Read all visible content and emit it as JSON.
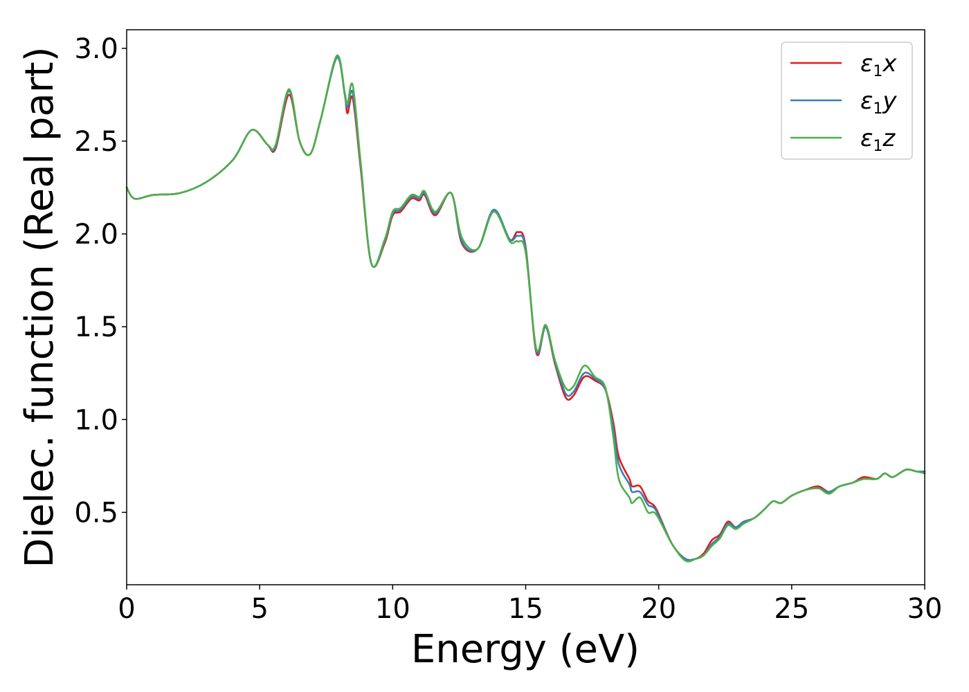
{
  "chart_data": {
    "type": "line",
    "xlabel": "Energy (eV)",
    "ylabel": "Dielec. function (Real part)",
    "xlim": [
      0,
      30
    ],
    "ylim": [
      0.11,
      3.1
    ],
    "xticks": [
      "0",
      "5",
      "10",
      "15",
      "20",
      "25",
      "30"
    ],
    "yticks": [
      "0.5",
      "1.0",
      "1.5",
      "2.0",
      "2.5",
      "3.0"
    ],
    "grid": false,
    "legend_position": "top-right",
    "series": [
      {
        "name": "ε1x",
        "legend_main": "ε",
        "legend_sub": "1",
        "legend_tail": "x",
        "color": "#e41a1c",
        "points": [
          [
            0,
            2.25
          ],
          [
            0.3,
            2.19
          ],
          [
            1,
            2.21
          ],
          [
            2,
            2.22
          ],
          [
            3,
            2.28
          ],
          [
            4,
            2.4
          ],
          [
            4.7,
            2.56
          ],
          [
            5.3,
            2.48
          ],
          [
            5.6,
            2.46
          ],
          [
            6.1,
            2.75
          ],
          [
            6.5,
            2.5
          ],
          [
            6.9,
            2.43
          ],
          [
            7.3,
            2.62
          ],
          [
            7.9,
            2.95
          ],
          [
            8.2,
            2.75
          ],
          [
            8.3,
            2.65
          ],
          [
            8.5,
            2.73
          ],
          [
            8.8,
            2.35
          ],
          [
            9.2,
            1.84
          ],
          [
            9.7,
            1.95
          ],
          [
            10.0,
            2.1
          ],
          [
            10.3,
            2.12
          ],
          [
            10.7,
            2.19
          ],
          [
            11.0,
            2.18
          ],
          [
            11.2,
            2.21
          ],
          [
            11.6,
            2.1
          ],
          [
            12.2,
            2.22
          ],
          [
            12.6,
            1.95
          ],
          [
            13.2,
            1.92
          ],
          [
            13.8,
            2.13
          ],
          [
            14.4,
            1.97
          ],
          [
            14.7,
            2.01
          ],
          [
            15.0,
            1.93
          ],
          [
            15.4,
            1.36
          ],
          [
            15.75,
            1.5
          ],
          [
            16.1,
            1.3
          ],
          [
            16.5,
            1.12
          ],
          [
            16.8,
            1.13
          ],
          [
            17.2,
            1.23
          ],
          [
            17.6,
            1.21
          ],
          [
            18.0,
            1.16
          ],
          [
            18.3,
            0.98
          ],
          [
            18.5,
            0.8
          ],
          [
            18.9,
            0.68
          ],
          [
            19.0,
            0.64
          ],
          [
            19.3,
            0.64
          ],
          [
            19.6,
            0.56
          ],
          [
            19.9,
            0.52
          ],
          [
            20.5,
            0.33
          ],
          [
            21.0,
            0.25
          ],
          [
            21.4,
            0.25
          ],
          [
            21.7,
            0.28
          ],
          [
            22.0,
            0.35
          ],
          [
            22.3,
            0.38
          ],
          [
            22.6,
            0.45
          ],
          [
            22.9,
            0.42
          ],
          [
            23.2,
            0.45
          ],
          [
            23.6,
            0.47
          ],
          [
            24.0,
            0.52
          ],
          [
            24.3,
            0.56
          ],
          [
            24.6,
            0.55
          ],
          [
            25.0,
            0.59
          ],
          [
            25.5,
            0.62
          ],
          [
            26.0,
            0.64
          ],
          [
            26.4,
            0.61
          ],
          [
            26.8,
            0.64
          ],
          [
            27.3,
            0.66
          ],
          [
            27.7,
            0.69
          ],
          [
            28.2,
            0.68
          ],
          [
            28.5,
            0.71
          ],
          [
            28.8,
            0.69
          ],
          [
            29.3,
            0.73
          ],
          [
            29.7,
            0.72
          ],
          [
            30,
            0.72
          ]
        ]
      },
      {
        "name": "ε1y",
        "legend_main": "ε",
        "legend_sub": "1",
        "legend_tail": "y",
        "color": "#377eb8",
        "points": [
          [
            0,
            2.25
          ],
          [
            0.3,
            2.19
          ],
          [
            1,
            2.21
          ],
          [
            2,
            2.22
          ],
          [
            3,
            2.28
          ],
          [
            4,
            2.4
          ],
          [
            4.7,
            2.56
          ],
          [
            5.3,
            2.48
          ],
          [
            5.6,
            2.47
          ],
          [
            6.1,
            2.77
          ],
          [
            6.5,
            2.5
          ],
          [
            6.9,
            2.43
          ],
          [
            7.3,
            2.62
          ],
          [
            7.9,
            2.95
          ],
          [
            8.2,
            2.75
          ],
          [
            8.3,
            2.68
          ],
          [
            8.5,
            2.76
          ],
          [
            8.8,
            2.37
          ],
          [
            9.2,
            1.84
          ],
          [
            9.7,
            1.96
          ],
          [
            10.0,
            2.11
          ],
          [
            10.3,
            2.13
          ],
          [
            10.7,
            2.2
          ],
          [
            11.0,
            2.19
          ],
          [
            11.2,
            2.22
          ],
          [
            11.6,
            2.11
          ],
          [
            12.2,
            2.22
          ],
          [
            12.6,
            1.96
          ],
          [
            13.2,
            1.92
          ],
          [
            13.8,
            2.13
          ],
          [
            14.4,
            1.97
          ],
          [
            14.7,
            1.99
          ],
          [
            15.0,
            1.92
          ],
          [
            15.4,
            1.37
          ],
          [
            15.75,
            1.5
          ],
          [
            16.1,
            1.31
          ],
          [
            16.5,
            1.14
          ],
          [
            16.8,
            1.15
          ],
          [
            17.2,
            1.25
          ],
          [
            17.6,
            1.22
          ],
          [
            18.0,
            1.16
          ],
          [
            18.3,
            0.95
          ],
          [
            18.5,
            0.76
          ],
          [
            18.9,
            0.65
          ],
          [
            19.0,
            0.61
          ],
          [
            19.3,
            0.61
          ],
          [
            19.6,
            0.54
          ],
          [
            19.9,
            0.51
          ],
          [
            20.5,
            0.33
          ],
          [
            21.0,
            0.25
          ],
          [
            21.4,
            0.25
          ],
          [
            21.7,
            0.27
          ],
          [
            22.0,
            0.33
          ],
          [
            22.3,
            0.37
          ],
          [
            22.6,
            0.44
          ],
          [
            22.9,
            0.42
          ],
          [
            23.2,
            0.45
          ],
          [
            23.6,
            0.47
          ],
          [
            24.0,
            0.52
          ],
          [
            24.3,
            0.56
          ],
          [
            24.6,
            0.55
          ],
          [
            25.0,
            0.59
          ],
          [
            25.5,
            0.62
          ],
          [
            26.0,
            0.63
          ],
          [
            26.4,
            0.61
          ],
          [
            26.8,
            0.64
          ],
          [
            27.3,
            0.66
          ],
          [
            27.7,
            0.68
          ],
          [
            28.2,
            0.68
          ],
          [
            28.5,
            0.71
          ],
          [
            28.8,
            0.69
          ],
          [
            29.3,
            0.73
          ],
          [
            29.7,
            0.72
          ],
          [
            30,
            0.72
          ]
        ]
      },
      {
        "name": "ε1z",
        "legend_main": "ε",
        "legend_sub": "1",
        "legend_tail": "z",
        "color": "#4daf4a",
        "points": [
          [
            0,
            2.25
          ],
          [
            0.3,
            2.19
          ],
          [
            1,
            2.21
          ],
          [
            2,
            2.22
          ],
          [
            3,
            2.28
          ],
          [
            4,
            2.4
          ],
          [
            4.7,
            2.56
          ],
          [
            5.3,
            2.48
          ],
          [
            5.6,
            2.48
          ],
          [
            6.1,
            2.78
          ],
          [
            6.5,
            2.5
          ],
          [
            6.9,
            2.43
          ],
          [
            7.3,
            2.62
          ],
          [
            7.9,
            2.96
          ],
          [
            8.2,
            2.76
          ],
          [
            8.3,
            2.7
          ],
          [
            8.5,
            2.8
          ],
          [
            8.8,
            2.38
          ],
          [
            9.2,
            1.84
          ],
          [
            9.7,
            1.97
          ],
          [
            10.0,
            2.12
          ],
          [
            10.3,
            2.14
          ],
          [
            10.7,
            2.21
          ],
          [
            11.0,
            2.2
          ],
          [
            11.2,
            2.23
          ],
          [
            11.6,
            2.12
          ],
          [
            12.2,
            2.22
          ],
          [
            12.6,
            1.98
          ],
          [
            13.2,
            1.92
          ],
          [
            13.8,
            2.12
          ],
          [
            14.4,
            1.96
          ],
          [
            14.7,
            1.96
          ],
          [
            15.0,
            1.9
          ],
          [
            15.4,
            1.38
          ],
          [
            15.75,
            1.51
          ],
          [
            16.1,
            1.32
          ],
          [
            16.5,
            1.17
          ],
          [
            16.8,
            1.18
          ],
          [
            17.2,
            1.29
          ],
          [
            17.6,
            1.23
          ],
          [
            18.0,
            1.17
          ],
          [
            18.3,
            0.9
          ],
          [
            18.5,
            0.68
          ],
          [
            18.9,
            0.58
          ],
          [
            19.0,
            0.55
          ],
          [
            19.3,
            0.58
          ],
          [
            19.6,
            0.5
          ],
          [
            19.9,
            0.49
          ],
          [
            20.5,
            0.33
          ],
          [
            21.0,
            0.24
          ],
          [
            21.4,
            0.25
          ],
          [
            21.7,
            0.27
          ],
          [
            22.0,
            0.32
          ],
          [
            22.3,
            0.36
          ],
          [
            22.6,
            0.43
          ],
          [
            22.9,
            0.41
          ],
          [
            23.2,
            0.44
          ],
          [
            23.6,
            0.47
          ],
          [
            24.0,
            0.52
          ],
          [
            24.3,
            0.56
          ],
          [
            24.6,
            0.55
          ],
          [
            25.0,
            0.59
          ],
          [
            25.5,
            0.62
          ],
          [
            26.0,
            0.63
          ],
          [
            26.4,
            0.6
          ],
          [
            26.8,
            0.64
          ],
          [
            27.3,
            0.66
          ],
          [
            27.7,
            0.68
          ],
          [
            28.2,
            0.68
          ],
          [
            28.5,
            0.71
          ],
          [
            28.8,
            0.69
          ],
          [
            29.3,
            0.73
          ],
          [
            29.7,
            0.72
          ],
          [
            30,
            0.71
          ]
        ]
      }
    ]
  }
}
